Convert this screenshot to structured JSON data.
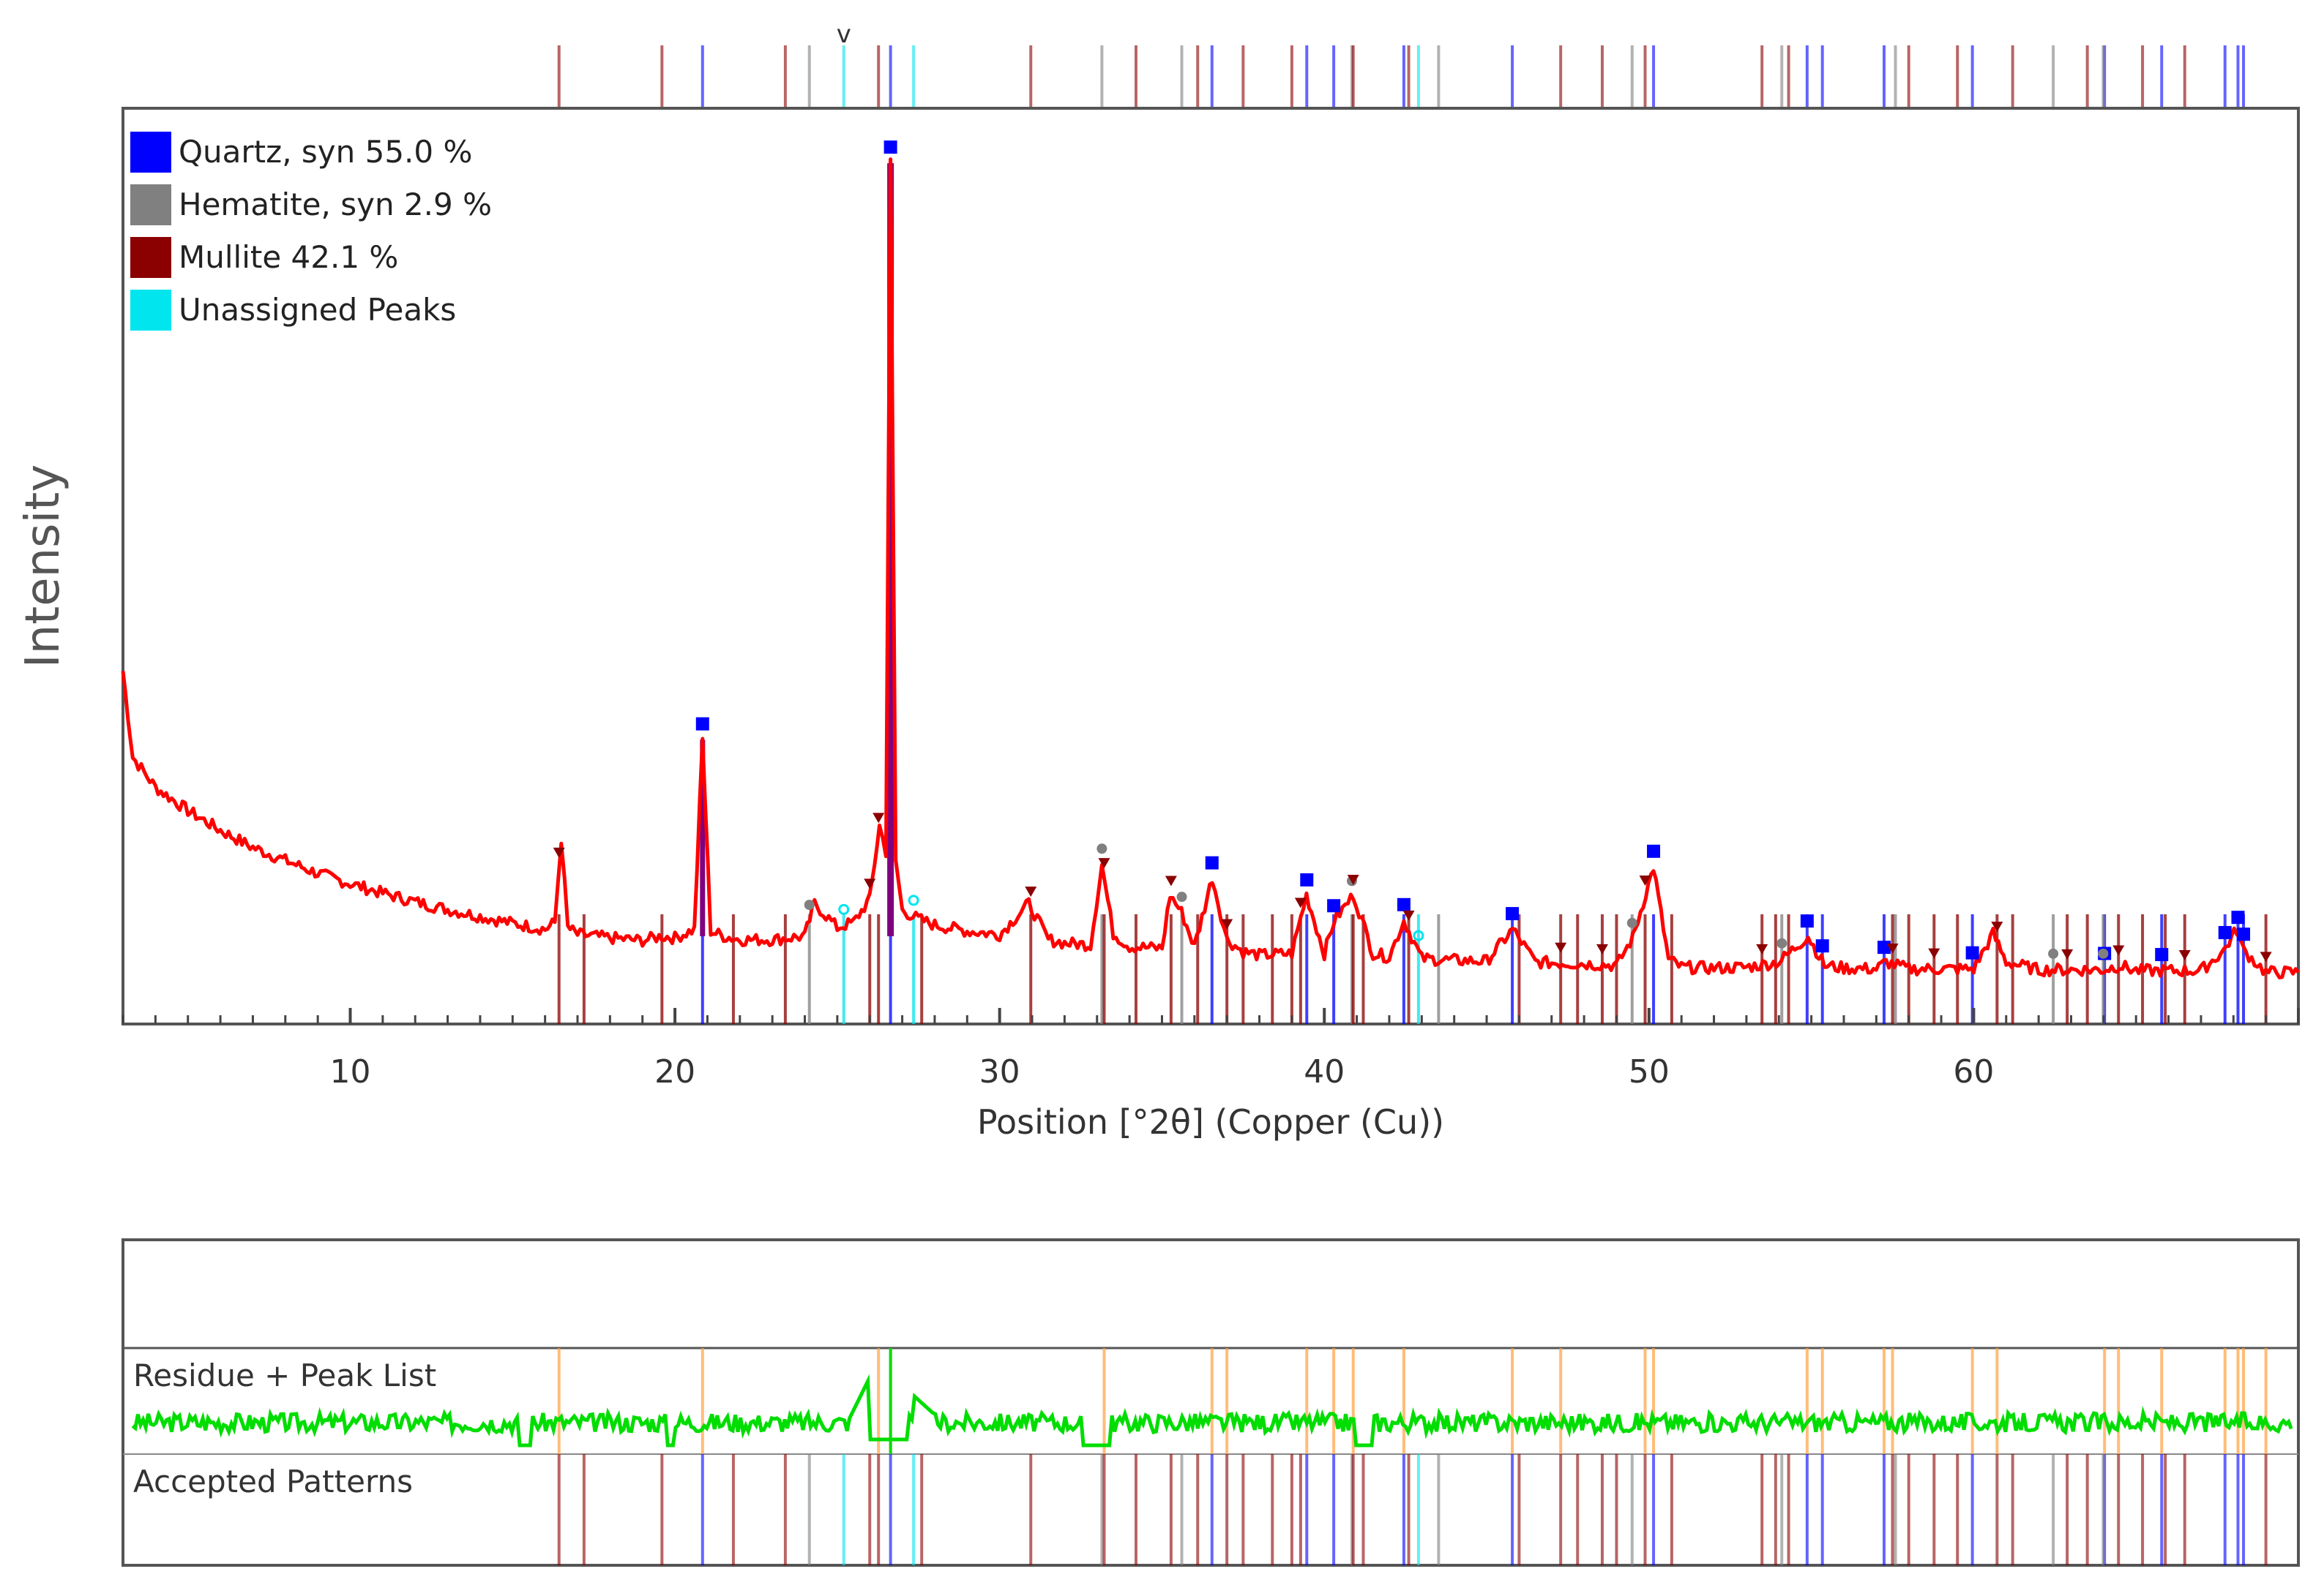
{
  "chart_data": {
    "type": "line",
    "title": "",
    "xlabel": "Position [°2θ] (Copper (Cu))",
    "ylabel": "Intensity",
    "xlim": [
      3,
      70
    ],
    "xticks": [
      10,
      20,
      30,
      40,
      50,
      60
    ],
    "ylim": [
      0,
      1000
    ],
    "grid": false,
    "legend_position": "top-left",
    "legend": [
      {
        "label": "Quartz, syn 55.0 %",
        "color": "#0000ff"
      },
      {
        "label": "Hematite, syn 2.9 %",
        "color": "#808080"
      },
      {
        "label": "Mullite 42.1 %",
        "color": "#8b0000"
      },
      {
        "label": "Unassigned Peaks",
        "color": "#00e5ee"
      }
    ],
    "series": [
      {
        "name": "Measured",
        "color": "#ff0000",
        "x": [
          3.0,
          3.3,
          4,
          5,
          6,
          7,
          8,
          9,
          10,
          11,
          12,
          13,
          14,
          15,
          16,
          16.3,
          16.5,
          16.7,
          17,
          18,
          19,
          19.6,
          20,
          20.6,
          20.85,
          21.1,
          21.5,
          22,
          23,
          24,
          24.3,
          25,
          25.5,
          26.0,
          26.3,
          26.5,
          26.64,
          26.8,
          27.0,
          27.5,
          28,
          29,
          30,
          30.9,
          31.5,
          32,
          32.8,
          33.15,
          33.5,
          34,
          35,
          35.25,
          35.6,
          36,
          36.55,
          37,
          37.5,
          38,
          39,
          39.45,
          40,
          40.3,
          40.9,
          41.5,
          42,
          42.45,
          43,
          44,
          45,
          45.8,
          46.5,
          47,
          48,
          49,
          49.5,
          50.14,
          50.6,
          51,
          52,
          53,
          54,
          54.9,
          55.4,
          56,
          57,
          57.3,
          58,
          59,
          60.0,
          60.6,
          61,
          62,
          63,
          64,
          64.5,
          65,
          66,
          67,
          67.7,
          68.1,
          68.3,
          69,
          70
        ],
        "y": [
          410,
          310,
          275,
          248,
          225,
          205,
          190,
          175,
          163,
          152,
          142,
          133,
          125,
          117,
          110,
          118,
          215,
          112,
          104,
          100,
          97,
          102,
          100,
          110,
          330,
          108,
          102,
          98,
          98,
          102,
          140,
          112,
          118,
          145,
          230,
          200,
          1000,
          190,
          132,
          122,
          115,
          108,
          104,
          140,
          98,
          94,
          92,
          185,
          105,
          90,
          88,
          150,
          130,
          90,
          170,
          98,
          84,
          80,
          82,
          150,
          82,
          120,
          150,
          82,
          78,
          120,
          76,
          74,
          73,
          110,
          72,
          71,
          70,
          68,
          100,
          182,
          75,
          66,
          65,
          66,
          72,
          102,
          68,
          65,
          64,
          72,
          64,
          64,
          64,
          105,
          72,
          63,
          63,
          63,
          68,
          62,
          62,
          62,
          85,
          110,
          86,
          60,
          60
        ]
      }
    ],
    "peak_markers": {
      "Quartz, syn": [
        20.85,
        26.64,
        36.54,
        39.46,
        40.29,
        42.45,
        45.79,
        50.14,
        54.87,
        55.34,
        57.24,
        59.96,
        64.03,
        65.79,
        67.74,
        68.14,
        68.31
      ],
      "Hematite, syn": [
        24.14,
        33.15,
        35.61,
        40.85,
        49.48,
        54.09,
        62.45,
        63.99
      ],
      "Mullite": [
        16.43,
        26.0,
        26.27,
        30.96,
        33.22,
        35.28,
        37.0,
        39.27,
        40.89,
        42.6,
        47.28,
        48.56,
        49.88,
        53.48,
        57.5,
        58.78,
        60.72,
        62.88,
        64.46,
        66.5,
        69.0
      ],
      "Unassigned Peaks": [
        25.2,
        27.35,
        42.9
      ]
    },
    "reference_lines": {
      "Quartz, syn": [
        20.85,
        26.64,
        36.54,
        39.46,
        40.29,
        42.45,
        45.79,
        50.14,
        54.87,
        55.34,
        57.24,
        59.96,
        64.03,
        65.79,
        67.74,
        68.14,
        68.31
      ],
      "Hematite, syn": [
        24.14,
        33.15,
        35.61,
        40.85,
        43.52,
        49.48,
        54.09,
        57.59,
        62.45,
        63.99
      ],
      "Mullite": [
        16.43,
        17.2,
        19.6,
        21.8,
        23.4,
        26.0,
        26.27,
        27.6,
        30.96,
        33.22,
        34.2,
        35.28,
        36.1,
        37.0,
        37.5,
        38.4,
        39.0,
        39.27,
        40.89,
        41.2,
        42.6,
        46.0,
        47.28,
        47.8,
        48.56,
        49.0,
        49.88,
        50.7,
        53.48,
        53.9,
        54.3,
        57.5,
        58.0,
        58.78,
        59.5,
        60.72,
        61.2,
        62.88,
        63.5,
        64.46,
        65.2,
        65.9,
        66.5,
        69.0
      ],
      "Unassigned Peaks": [
        25.2,
        27.35,
        42.9
      ]
    },
    "subpanels": [
      {
        "label": "Residue + Peak List"
      },
      {
        "label": "Accepted Patterns"
      }
    ]
  },
  "colors": {
    "measured": "#ff0000",
    "fit": "#800080",
    "residue": "#00dd00",
    "peak_list_tick": "#ffa040",
    "frame": "#555555"
  }
}
